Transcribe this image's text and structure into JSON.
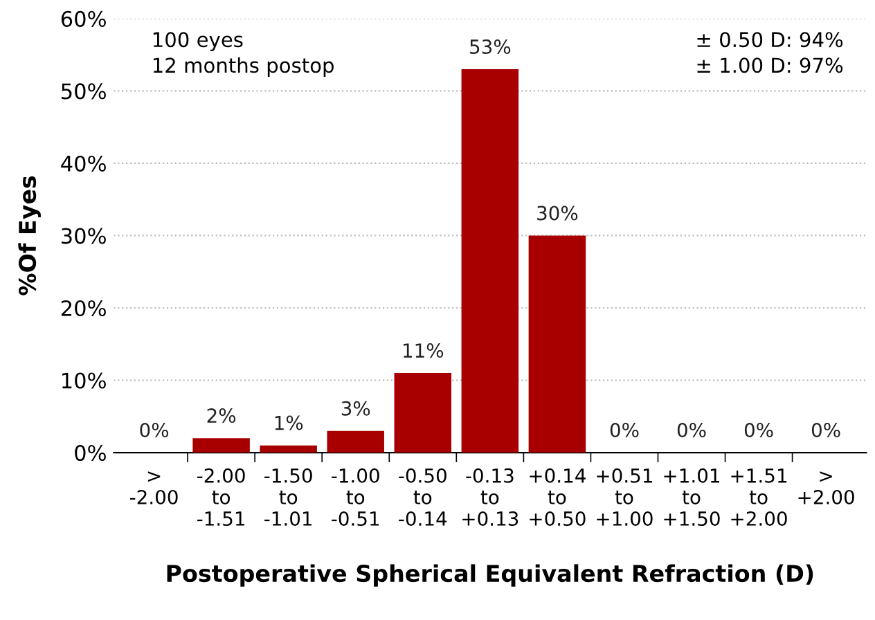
{
  "chart_data": {
    "type": "bar",
    "xlabel": "Postoperative Spherical Equivalent Refraction (D)",
    "ylabel": "%Of Eyes",
    "categories": [
      ">\n-2.00",
      "-2.00\nto\n-1.51",
      "-1.50\nto\n-1.01",
      "-1.00\nto\n-0.51",
      "-0.50\nto\n-0.14",
      "-0.13\nto\n+0.13",
      "+0.14\nto\n+0.50",
      "+0.51\nto\n+1.00",
      "+1.01\nto\n+1.50",
      "+1.51\nto\n+2.00",
      ">\n+2.00"
    ],
    "values": [
      0,
      2,
      1,
      3,
      11,
      53,
      30,
      0,
      0,
      0,
      0
    ],
    "value_labels": [
      "0%",
      "2%",
      "1%",
      "3%",
      "11%",
      "53%",
      "30%",
      "0%",
      "0%",
      "0%",
      "0%"
    ],
    "color": "#a80000",
    "ylim": [
      0,
      60
    ],
    "yticks": [
      {
        "value": 0,
        "label": "0%"
      },
      {
        "value": 10,
        "label": "10%"
      },
      {
        "value": 20,
        "label": "20%"
      },
      {
        "value": 30,
        "label": "30%"
      },
      {
        "value": 40,
        "label": "40%"
      },
      {
        "value": 50,
        "label": "50%"
      },
      {
        "value": 60,
        "label": "60%"
      }
    ],
    "grid": "y",
    "annotations": [
      "100 eyes\n12 months postop",
      "± 0.50 D: 94%\n± 1.00 D: 97%"
    ]
  }
}
